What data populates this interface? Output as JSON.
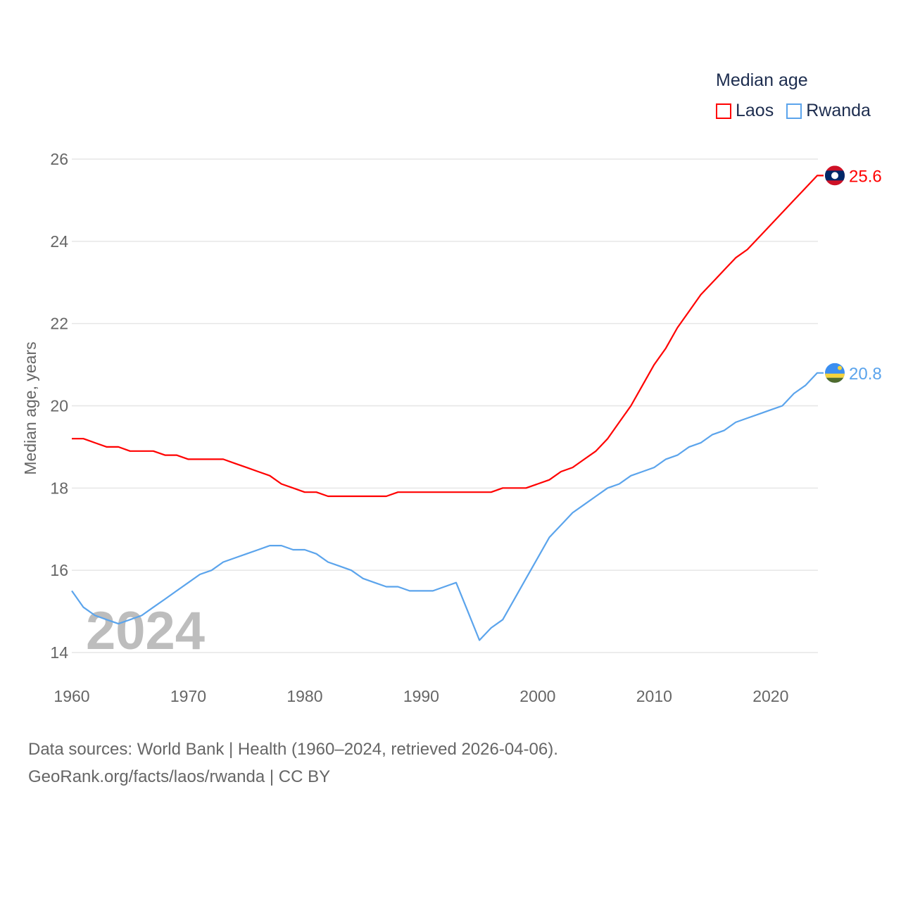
{
  "chart_data": {
    "type": "line",
    "title": "Median age",
    "xlabel": "",
    "ylabel": "Median age, years",
    "xlim": [
      1960,
      2024
    ],
    "ylim": [
      14,
      26
    ],
    "x_ticks": [
      1960,
      1970,
      1980,
      1990,
      2000,
      2010,
      2020
    ],
    "y_ticks": [
      14,
      16,
      18,
      20,
      22,
      24,
      26
    ],
    "grid": true,
    "legend_position": "top-right",
    "year_watermark": "2024",
    "x": [
      1960,
      1961,
      1962,
      1963,
      1964,
      1965,
      1966,
      1967,
      1968,
      1969,
      1970,
      1971,
      1972,
      1973,
      1974,
      1975,
      1976,
      1977,
      1978,
      1979,
      1980,
      1981,
      1982,
      1983,
      1984,
      1985,
      1986,
      1987,
      1988,
      1989,
      1990,
      1991,
      1992,
      1993,
      1994,
      1995,
      1996,
      1997,
      1998,
      1999,
      2000,
      2001,
      2002,
      2003,
      2004,
      2005,
      2006,
      2007,
      2008,
      2009,
      2010,
      2011,
      2012,
      2013,
      2014,
      2015,
      2016,
      2017,
      2018,
      2019,
      2020,
      2021,
      2022,
      2023,
      2024
    ],
    "series": [
      {
        "name": "Laos",
        "color": "#ff0000",
        "end_label": "25.6",
        "values": [
          19.2,
          19.2,
          19.1,
          19.0,
          19.0,
          18.9,
          18.9,
          18.9,
          18.8,
          18.8,
          18.7,
          18.7,
          18.7,
          18.7,
          18.6,
          18.5,
          18.4,
          18.3,
          18.1,
          18.0,
          17.9,
          17.9,
          17.8,
          17.8,
          17.8,
          17.8,
          17.8,
          17.8,
          17.9,
          17.9,
          17.9,
          17.9,
          17.9,
          17.9,
          17.9,
          17.9,
          17.9,
          18.0,
          18.0,
          18.0,
          18.1,
          18.2,
          18.4,
          18.5,
          18.7,
          18.9,
          19.2,
          19.6,
          20.0,
          20.5,
          21.0,
          21.4,
          21.9,
          22.3,
          22.7,
          23.0,
          23.3,
          23.6,
          23.8,
          24.1,
          24.4,
          24.7,
          25.0,
          25.3,
          25.6
        ]
      },
      {
        "name": "Rwanda",
        "color": "#5ba4ec",
        "end_label": "20.8",
        "values": [
          15.5,
          15.1,
          14.9,
          14.8,
          14.7,
          14.8,
          14.9,
          15.1,
          15.3,
          15.5,
          15.7,
          15.9,
          16.0,
          16.2,
          16.3,
          16.4,
          16.5,
          16.6,
          16.6,
          16.5,
          16.5,
          16.4,
          16.2,
          16.1,
          16.0,
          15.8,
          15.7,
          15.6,
          15.6,
          15.5,
          15.5,
          15.5,
          15.6,
          15.7,
          15.0,
          14.3,
          14.6,
          14.8,
          15.3,
          15.8,
          16.3,
          16.8,
          17.1,
          17.4,
          17.6,
          17.8,
          18.0,
          18.1,
          18.3,
          18.4,
          18.5,
          18.7,
          18.8,
          19.0,
          19.1,
          19.3,
          19.4,
          19.6,
          19.7,
          19.8,
          19.9,
          20.0,
          20.3,
          20.5,
          20.8
        ]
      }
    ]
  },
  "footer": {
    "line1": "Data sources: World Bank | Health (1960–2024, retrieved 2026-04-06).",
    "line2": "GeoRank.org/facts/laos/rwanda | CC BY"
  }
}
